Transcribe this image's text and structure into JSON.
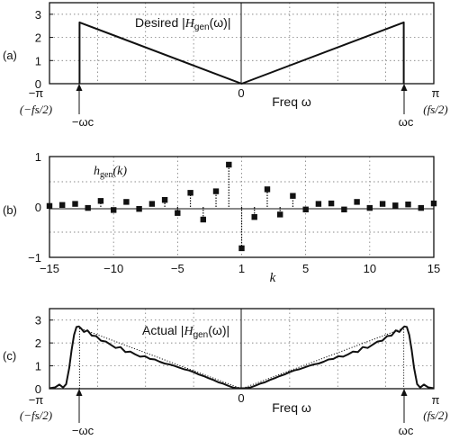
{
  "chart_data": [
    {
      "panel": "(a)",
      "type": "line",
      "annotation": "Desired |Hgen(ω)|",
      "annotation_parts": [
        "Desired |",
        "H",
        "gen",
        "(ω)|"
      ],
      "xlabel": "Freq ω",
      "xlim": [
        -3.1416,
        3.1416
      ],
      "ylim": [
        0,
        3.5
      ],
      "yticks": [
        "0",
        "1",
        "2",
        "3"
      ],
      "xtick_labels": {
        "left": "−π",
        "center": "0",
        "right": "π"
      },
      "fs_labels": {
        "left": "(−fs/2)",
        "right": "(fs/2)"
      },
      "wc_labels": {
        "left": "−ωc",
        "right": "ωc"
      },
      "x": [
        -2.65,
        -2.65,
        0,
        2.65,
        2.65
      ],
      "y": [
        0,
        2.65,
        0,
        2.65,
        0
      ]
    },
    {
      "panel": "(b)",
      "type": "scatter",
      "annotation": "hgen(k)",
      "annotation_parts": [
        "h",
        "gen",
        "(k)"
      ],
      "xlabel": "k",
      "xlim": [
        -15,
        15
      ],
      "ylim": [
        -1,
        1
      ],
      "yticks": [
        "−1",
        "0",
        "1"
      ],
      "xticks": [
        "−15",
        "−10",
        "−5",
        "1",
        "5",
        "10",
        "15"
      ],
      "x": [
        -15,
        -14,
        -13,
        -12,
        -11,
        -10,
        -9,
        -8,
        -7,
        -6,
        -5,
        -4,
        -3,
        -2,
        -1,
        0,
        1,
        2,
        3,
        4,
        5,
        6,
        7,
        8,
        9,
        10,
        11,
        12,
        13,
        14,
        15
      ],
      "values": [
        0.02,
        0.04,
        0.06,
        -0.02,
        0.12,
        -0.06,
        0.1,
        -0.04,
        0.06,
        0.14,
        -0.12,
        0.28,
        -0.25,
        0.31,
        0.84,
        -0.82,
        -0.2,
        0.35,
        -0.15,
        0.22,
        -0.05,
        0.06,
        0.07,
        -0.05,
        0.1,
        -0.02,
        0.06,
        0.03,
        0.05,
        -0.02,
        0.07
      ]
    },
    {
      "panel": "(c)",
      "type": "line",
      "annotation": "Actual |Hgen(ω)|",
      "annotation_parts": [
        "Actual |",
        "H",
        "gen",
        "(ω)|"
      ],
      "xlabel": "Freq ω",
      "xlim": [
        -3.1416,
        3.1416
      ],
      "ylim": [
        0,
        3.5
      ],
      "yticks": [
        "0",
        "1",
        "2",
        "3"
      ],
      "xtick_labels": {
        "left": "−π",
        "center": "0",
        "right": "π"
      },
      "fs_labels": {
        "left": "(−fs/2)",
        "right": "(fs/2)"
      },
      "wc_labels": {
        "left": "−ωc",
        "right": "ωc"
      },
      "series": [
        {
          "x": [
            -2.65,
            -2.65,
            0,
            2.65,
            2.65
          ],
          "y": [
            0,
            2.65,
            0,
            2.65,
            0
          ]
        },
        {
          "x": [
            -3.1416,
            -3.05,
            -2.98,
            -2.92,
            -2.87,
            -2.82,
            -2.78,
            -2.74,
            -2.7,
            -2.66,
            -2.62,
            -2.58,
            -2.52,
            -2.45,
            -2.38,
            -2.3,
            -2.22,
            -2.14,
            -2.06,
            -1.98,
            -1.9,
            -1.82,
            -1.74,
            -1.66,
            -1.58,
            -1.5,
            -1.42,
            -1.34,
            -1.26,
            -1.18,
            -1.1,
            -1.02,
            -0.94,
            -0.86,
            -0.78,
            -0.7,
            -0.62,
            -0.54,
            -0.46,
            -0.38,
            -0.3,
            -0.22,
            -0.14,
            -0.06,
            0,
            0.06,
            0.14,
            0.22,
            0.3,
            0.38,
            0.46,
            0.54,
            0.62,
            0.7,
            0.78,
            0.86,
            0.94,
            1.02,
            1.1,
            1.18,
            1.26,
            1.34,
            1.42,
            1.5,
            1.58,
            1.66,
            1.74,
            1.82,
            1.9,
            1.98,
            2.06,
            2.14,
            2.22,
            2.3,
            2.38,
            2.45,
            2.52,
            2.58,
            2.62,
            2.66,
            2.7,
            2.74,
            2.78,
            2.82,
            2.87,
            2.92,
            2.98,
            3.05,
            3.1416
          ],
          "y": [
            0.02,
            0.06,
            0.18,
            0.05,
            0.2,
            0.9,
            1.7,
            2.35,
            2.7,
            2.72,
            2.62,
            2.48,
            2.55,
            2.32,
            2.3,
            2.1,
            2.06,
            1.92,
            1.78,
            1.82,
            1.6,
            1.62,
            1.5,
            1.4,
            1.42,
            1.3,
            1.28,
            1.18,
            1.1,
            1.06,
            1.0,
            0.92,
            0.85,
            0.8,
            0.72,
            0.62,
            0.55,
            0.46,
            0.38,
            0.28,
            0.22,
            0.13,
            0.05,
            0.02,
            0.02,
            0.02,
            0.05,
            0.13,
            0.22,
            0.28,
            0.38,
            0.46,
            0.55,
            0.62,
            0.72,
            0.8,
            0.85,
            0.92,
            1.0,
            1.06,
            1.1,
            1.18,
            1.28,
            1.3,
            1.42,
            1.4,
            1.5,
            1.62,
            1.6,
            1.82,
            1.78,
            1.92,
            2.06,
            2.1,
            2.3,
            2.32,
            2.55,
            2.48,
            2.62,
            2.72,
            2.7,
            2.35,
            1.7,
            0.9,
            0.2,
            0.05,
            0.18,
            0.06,
            0.02
          ]
        }
      ]
    }
  ]
}
